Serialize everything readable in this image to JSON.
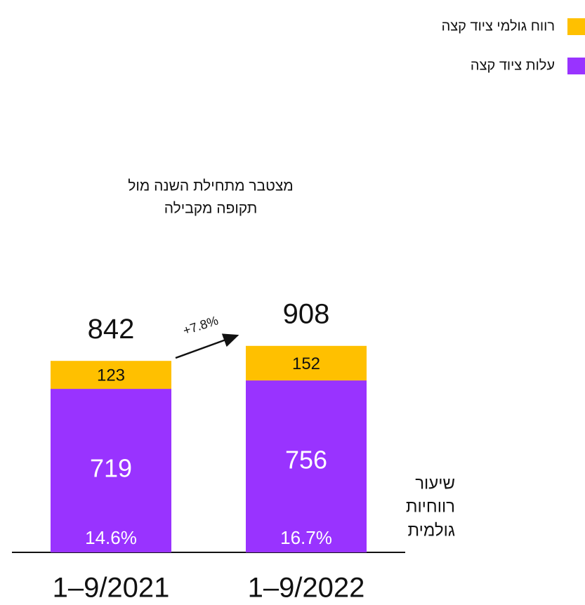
{
  "chart_data": {
    "type": "stacked_bar",
    "title": [
      "מצטבר מתחילת השנה מול",
      "תקופה מקבילה"
    ],
    "categories": [
      "1–9/2021",
      "1–9/2022"
    ],
    "series": [
      {
        "name": "עלות ציוד קצה",
        "color": "#9933ff",
        "values": [
          719,
          756
        ]
      },
      {
        "name": "רווח גולמי ציוד קצה",
        "color": "#ffc000",
        "values": [
          123,
          152
        ]
      }
    ],
    "totals": [
      842,
      908
    ],
    "margins": {
      "values": [
        14.6,
        16.7
      ],
      "value_labels": [
        "14.6%",
        "16.7%"
      ]
    },
    "margin_label": [
      "שיעור",
      "רווחיות",
      "גולמית"
    ],
    "growth_label": "+7.8%"
  }
}
